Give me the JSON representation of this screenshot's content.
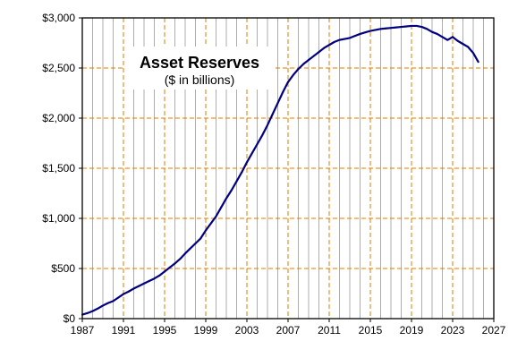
{
  "chart_data": {
    "type": "line",
    "title": "Asset Reserves",
    "subtitle": "($ in billions)",
    "xlabel": "",
    "ylabel": "",
    "xlim": [
      1987,
      2027
    ],
    "ylim": [
      0,
      3000
    ],
    "x_ticks": [
      1987,
      1991,
      1995,
      1999,
      2003,
      2007,
      2011,
      2015,
      2019,
      2023,
      2027
    ],
    "x_tick_labels": [
      "1987",
      "1991",
      "1995",
      "1999",
      "2003",
      "2007",
      "2011",
      "2015",
      "2019",
      "2023",
      "2027"
    ],
    "y_ticks": [
      0,
      500,
      1000,
      1500,
      2000,
      2500,
      3000
    ],
    "y_tick_labels": [
      "$0",
      "$500",
      "$1,000",
      "$1,500",
      "$2,000",
      "$2,500",
      "$3,000"
    ],
    "grid": true,
    "legend": "none",
    "colors": {
      "line": "#000080",
      "major_grid": "#e07b00",
      "minor_grid": "#999999",
      "axis": "#000000"
    },
    "series": [
      {
        "x": [
          1987,
          1987.5,
          1988,
          1988.5,
          1989,
          1989.5,
          1990,
          1990.5,
          1991,
          1991.5,
          1992,
          1992.5,
          1993,
          1993.5,
          1994,
          1994.5,
          1995,
          1995.5,
          1996,
          1996.5,
          1997,
          1997.5,
          1998,
          1998.5,
          1999,
          1999.5,
          2000,
          2000.5,
          2001,
          2001.5,
          2002,
          2002.5,
          2003,
          2003.5,
          2004,
          2004.5,
          2005,
          2005.5,
          2006,
          2006.5,
          2007,
          2007.5,
          2008,
          2008.5,
          2009,
          2009.5,
          2010,
          2010.5,
          2011,
          2011.5,
          2012,
          2012.5,
          2013,
          2013.5,
          2014,
          2014.5,
          2015,
          2015.5,
          2016,
          2016.5,
          2017,
          2017.5,
          2018,
          2018.5,
          2019,
          2019.5,
          2020,
          2020.5,
          2021,
          2021.5,
          2022,
          2022.5,
          2023,
          2023.5,
          2024,
          2024.5,
          2025,
          2025.5
        ],
        "y": [
          40,
          55,
          75,
          100,
          130,
          155,
          175,
          210,
          245,
          270,
          300,
          325,
          350,
          375,
          400,
          430,
          470,
          510,
          550,
          595,
          650,
          700,
          750,
          800,
          880,
          950,
          1020,
          1110,
          1200,
          1280,
          1370,
          1460,
          1560,
          1650,
          1740,
          1830,
          1930,
          2040,
          2150,
          2260,
          2360,
          2430,
          2490,
          2540,
          2580,
          2620,
          2660,
          2700,
          2730,
          2760,
          2780,
          2790,
          2800,
          2820,
          2840,
          2855,
          2870,
          2880,
          2890,
          2895,
          2900,
          2905,
          2910,
          2915,
          2920,
          2920,
          2910,
          2890,
          2860,
          2840,
          2810,
          2780,
          2810,
          2770,
          2740,
          2710,
          2650,
          2560
        ]
      }
    ]
  }
}
